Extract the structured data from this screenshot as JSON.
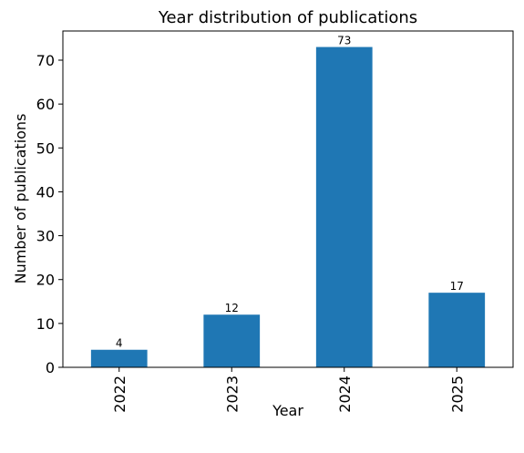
{
  "chart_data": {
    "type": "bar",
    "title": "Year distribution of publications",
    "xlabel": "Year",
    "ylabel": "Number of publications",
    "categories": [
      "2022",
      "2023",
      "2024",
      "2025"
    ],
    "values": [
      4,
      12,
      73,
      17
    ],
    "data_labels": [
      "4",
      "12",
      "73",
      "17"
    ],
    "ylim": [
      0,
      76.65
    ],
    "yticks": [
      0,
      10,
      20,
      30,
      40,
      50,
      60,
      70
    ],
    "ytick_labels": [
      "0",
      "10",
      "20",
      "30",
      "40",
      "50",
      "60",
      "70"
    ],
    "bar_color": "#1f77b4",
    "grid": false,
    "legend": "none"
  }
}
